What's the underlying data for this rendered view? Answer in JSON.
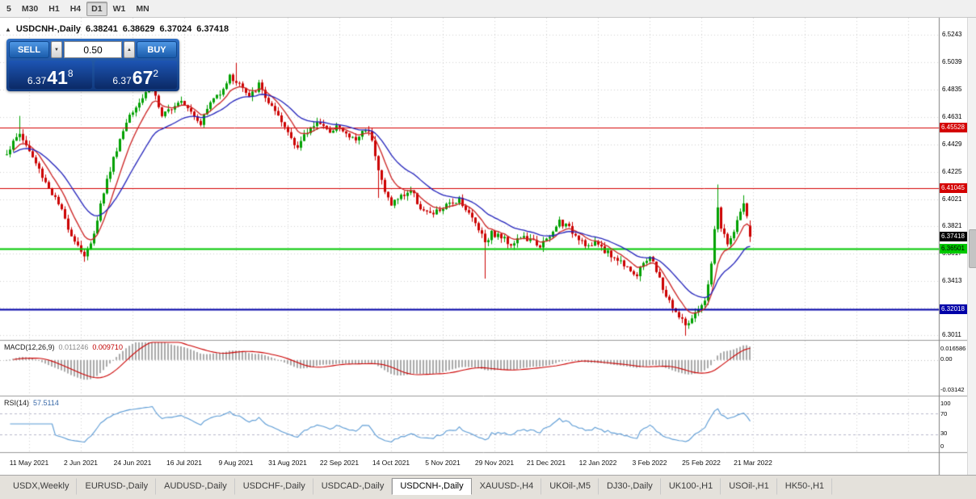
{
  "icons": {
    "collapse_arrow": "▲",
    "triangle_up": "▲",
    "triangle_down": "▼"
  },
  "toolbar": {
    "timeframes": [
      "5",
      "M30",
      "H1",
      "H4",
      "D1",
      "W1",
      "MN"
    ],
    "selected": "D1"
  },
  "chart_info": {
    "symbol_period": "USDCNH-,Daily",
    "open": "6.38241",
    "high": "6.38629",
    "low": "6.37024",
    "close": "6.37418"
  },
  "trade_panel": {
    "sell_label": "SELL",
    "buy_label": "BUY",
    "lot": "0.50",
    "sell_price": {
      "prefix": "6.37",
      "main": "41",
      "sup": "8"
    },
    "buy_price": {
      "prefix": "6.37",
      "main": "67",
      "sup": "2"
    }
  },
  "tabs": {
    "items": [
      "USDX,Weekly",
      "EURUSD-,Daily",
      "AUDUSD-,Daily",
      "USDCHF-,Daily",
      "USDCAD-,Daily",
      "USDCNH-,Daily",
      "XAUUSD-,H4",
      "UKOil-,M5",
      "DJ30-,Daily",
      "UK100-,H1",
      "USOil-,H1",
      "HK50-,H1"
    ],
    "active": "USDCNH-,Daily"
  },
  "chart_data": {
    "type": "candlestick",
    "symbol": "USDCNH-",
    "timeframe": "Daily",
    "title": "USDCNH-,Daily",
    "last_bar": {
      "open": 6.38241,
      "high": 6.38629,
      "low": 6.37024,
      "close": 6.37418
    },
    "bars_count": 231,
    "y_axis_range": [
      6.298,
      6.537
    ],
    "y_tick_labels": [
      "6.5243",
      "6.5039",
      "6.4835",
      "6.4631",
      "6.4429",
      "6.4225",
      "6.4021",
      "6.3821",
      "6.3617",
      "6.3413",
      "6.3213",
      "6.3011"
    ],
    "x_tick_labels": [
      "11 May 2021",
      "2 Jun 2021",
      "24 Jun 2021",
      "16 Jul 2021",
      "9 Aug 2021",
      "31 Aug 2021",
      "22 Sep 2021",
      "14 Oct 2021",
      "5 Nov 2021",
      "29 Nov 2021",
      "21 Dec 2021",
      "12 Jan 2022",
      "3 Feb 2022",
      "25 Feb 2022",
      "21 Mar 2022"
    ],
    "candle_colors": {
      "up": "#00a000",
      "down": "#cc0000"
    },
    "close_path_anchors": [
      [
        0,
        6.437
      ],
      [
        4,
        6.451
      ],
      [
        8,
        6.433
      ],
      [
        12,
        6.415
      ],
      [
        16,
        6.398
      ],
      [
        20,
        6.376
      ],
      [
        24,
        6.36
      ],
      [
        26,
        6.368
      ],
      [
        30,
        6.408
      ],
      [
        34,
        6.44
      ],
      [
        38,
        6.466
      ],
      [
        42,
        6.478
      ],
      [
        45,
        6.488
      ],
      [
        48,
        6.462
      ],
      [
        51,
        6.471
      ],
      [
        54,
        6.477
      ],
      [
        57,
        6.468
      ],
      [
        60,
        6.459
      ],
      [
        63,
        6.474
      ],
      [
        66,
        6.482
      ],
      [
        69,
        6.493
      ],
      [
        72,
        6.488
      ],
      [
        75,
        6.477
      ],
      [
        78,
        6.487
      ],
      [
        81,
        6.474
      ],
      [
        84,
        6.462
      ],
      [
        87,
        6.452
      ],
      [
        90,
        6.441
      ],
      [
        93,
        6.452
      ],
      [
        96,
        6.461
      ],
      [
        99,
        6.452
      ],
      [
        102,
        6.457
      ],
      [
        105,
        6.45
      ],
      [
        108,
        6.446
      ],
      [
        111,
        6.455
      ],
      [
        113,
        6.448
      ],
      [
        115,
        6.424
      ],
      [
        117,
        6.407
      ],
      [
        119,
        6.399
      ],
      [
        122,
        6.404
      ],
      [
        125,
        6.409
      ],
      [
        128,
        6.396
      ],
      [
        131,
        6.39
      ],
      [
        134,
        6.394
      ],
      [
        137,
        6.398
      ],
      [
        140,
        6.403
      ],
      [
        143,
        6.391
      ],
      [
        146,
        6.381
      ],
      [
        148,
        6.371
      ],
      [
        150,
        6.377
      ],
      [
        153,
        6.374
      ],
      [
        156,
        6.369
      ],
      [
        159,
        6.374
      ],
      [
        162,
        6.371
      ],
      [
        165,
        6.368
      ],
      [
        168,
        6.373
      ],
      [
        171,
        6.386
      ],
      [
        174,
        6.38
      ],
      [
        177,
        6.374
      ],
      [
        180,
        6.367
      ],
      [
        183,
        6.369
      ],
      [
        186,
        6.362
      ],
      [
        189,
        6.357
      ],
      [
        192,
        6.353
      ],
      [
        195,
        6.344
      ],
      [
        197,
        6.355
      ],
      [
        199,
        6.36
      ],
      [
        202,
        6.342
      ],
      [
        204,
        6.33
      ],
      [
        206,
        6.322
      ],
      [
        208,
        6.314
      ],
      [
        210,
        6.309
      ],
      [
        212,
        6.312
      ],
      [
        214,
        6.319
      ],
      [
        216,
        6.325
      ],
      [
        218,
        6.355
      ],
      [
        219,
        6.378
      ],
      [
        220,
        6.396
      ],
      [
        221,
        6.381
      ],
      [
        222,
        6.374
      ],
      [
        223,
        6.368
      ],
      [
        224,
        6.372
      ],
      [
        225,
        6.38
      ],
      [
        226,
        6.386
      ],
      [
        227,
        6.392
      ],
      [
        228,
        6.397
      ],
      [
        229,
        6.39
      ],
      [
        230,
        6.374
      ]
    ],
    "wick_extremes": [
      {
        "i": 4,
        "h": 6.464
      },
      {
        "i": 24,
        "l": 6.3555
      },
      {
        "i": 71,
        "h": 6.5035
      },
      {
        "i": 115,
        "l": 6.403
      },
      {
        "i": 148,
        "l": 6.343
      },
      {
        "i": 196,
        "l": 6.341
      },
      {
        "i": 210,
        "l": 6.3005
      },
      {
        "i": 220,
        "h": 6.413
      },
      {
        "i": 228,
        "h": 6.405
      }
    ],
    "moving_averages": [
      {
        "type": "ema",
        "period": 8,
        "color": "#cc2222"
      },
      {
        "type": "ema",
        "period": 21,
        "color": "#2222bb"
      }
    ],
    "horizontal_levels": [
      {
        "price": 6.45528,
        "color": "#d40000",
        "label": "6.45528",
        "label_text": "#ffffff",
        "thickness": 1
      },
      {
        "price": 6.41045,
        "color": "#d40000",
        "label": "6.41045",
        "label_text": "#ffffff",
        "thickness": 1
      },
      {
        "price": 6.36501,
        "color": "#00c800",
        "label": "6.36501",
        "label_text": "#000000",
        "thickness": 2
      },
      {
        "price": 6.32018,
        "color": "#0000a8",
        "label": "6.32018",
        "label_text": "#ffffff",
        "thickness": 2
      }
    ],
    "current_price": {
      "value": 6.37418,
      "label": "6.37418",
      "badge_color": "#000000"
    },
    "indicators": {
      "macd": {
        "label": "MACD(12,26,9)",
        "values": [
          "0.011246",
          "0.009710"
        ],
        "fast": 12,
        "slow": 26,
        "signal": 9,
        "scale_max": 0.016586,
        "scale_min": -0.03142,
        "scale_labels": [
          "0.016586",
          "0.00",
          "-0.03142"
        ],
        "histogram_color": "#aaaaaa",
        "signal_color": "#cc0000"
      },
      "rsi": {
        "label": "RSI(14)",
        "value": "57.5114",
        "period": 14,
        "levels": [
          70,
          30
        ],
        "scale_labels": [
          "100",
          "70",
          "30",
          "0"
        ],
        "line_color": "#5b9bd5"
      }
    }
  }
}
